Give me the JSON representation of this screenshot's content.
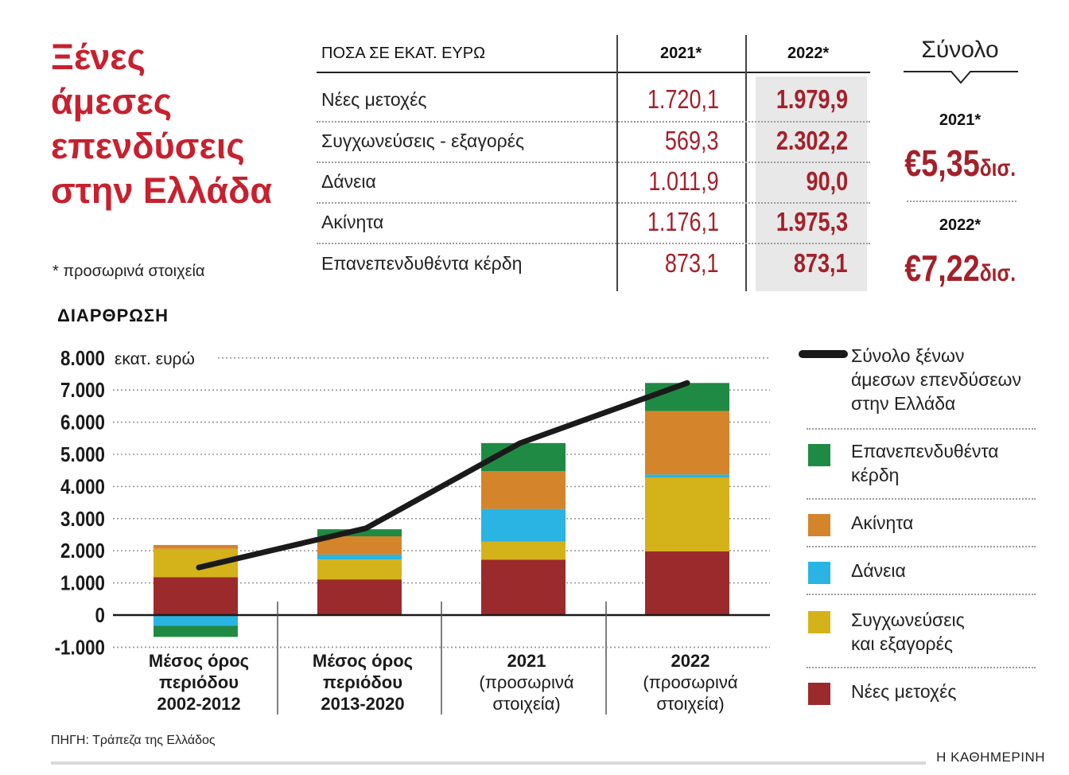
{
  "title": [
    "Ξένες",
    "άμεσες",
    "επενδύσεις",
    "στην Ελλάδα"
  ],
  "footnote": "* προσωρινά στοιχεία",
  "table": {
    "header_label": "ΠΟΣΑ ΣΕ ΕΚΑΤ. ΕΥΡΩ",
    "years": [
      "2021*",
      "2022*"
    ],
    "rows": [
      {
        "label": "Νέες μετοχές",
        "v2021": "1.720,1",
        "v2022": "1.979,9"
      },
      {
        "label": "Συγχωνεύσεις - εξαγορές",
        "v2021": "569,3",
        "v2022": "2.302,2"
      },
      {
        "label": "Δάνεια",
        "v2021": "1.011,9",
        "v2022": "90,0"
      },
      {
        "label": "Ακίνητα",
        "v2021": "1.176,1",
        "v2022": "1.975,3"
      },
      {
        "label": "Επανεπενδυθέντα κέρδη",
        "v2021": "873,1",
        "v2022": "873,1"
      }
    ]
  },
  "totals": {
    "title": "Σύνολο",
    "items": [
      {
        "year": "2021*",
        "value": "€5,35",
        "unit": "δισ."
      },
      {
        "year": "2022*",
        "value": "€7,22",
        "unit": "δισ."
      }
    ]
  },
  "section_title": "ΔΙΑΡΘΡΩΣΗ",
  "source": "ΠΗΓΗ: Τράπεζα της Ελλάδος",
  "brand": "Η ΚΑΘΗΜΕΡΙΝΗ",
  "colors": {
    "Νέες μετοχές": "#9b2a2c",
    "Συγχωνεύσεις και εξαγορές": "#d4b21a",
    "Δάνεια": "#29b4e3",
    "Ακίνητα": "#d4842a",
    "Επανεπενδυθέντα κέρδη": "#1f8a43",
    "line": "#1a1a1a",
    "accent": "#c8202e"
  },
  "chart_data": {
    "type": "bar",
    "stacked": true,
    "ylabel": "εκατ. ευρώ",
    "ylim": [
      -1000,
      8000
    ],
    "yticks": [
      "8.000",
      "7.000",
      "6.000",
      "5.000",
      "4.000",
      "3.000",
      "2.000",
      "1.000",
      "0",
      "-1.000"
    ],
    "ytick_values": [
      8000,
      7000,
      6000,
      5000,
      4000,
      3000,
      2000,
      1000,
      0,
      -1000
    ],
    "categories": [
      [
        "Μέσος όρος",
        "περιόδου",
        "2002-2012"
      ],
      [
        "Μέσος όρος",
        "περιόδου",
        "2013-2020"
      ],
      [
        "2021",
        "(προσωρινά",
        "στοιχεία)"
      ],
      [
        "2022",
        "(προσωρινά",
        "στοιχεία)"
      ]
    ],
    "series": [
      {
        "name": "Νέες μετοχές",
        "values": [
          1180,
          1110,
          1720.1,
          1979.9
        ]
      },
      {
        "name": "Συγχωνεύσεις και εξαγορές",
        "values": [
          880,
          620,
          569.3,
          2302.2
        ]
      },
      {
        "name": "Δάνεια",
        "values": [
          -330,
          150,
          1011.9,
          90.0
        ]
      },
      {
        "name": "Ακίνητα",
        "values": [
          120,
          570,
          1176.1,
          1975.3
        ]
      },
      {
        "name": "Επανεπενδυθέντα κέρδη",
        "values": [
          -350,
          220,
          873.1,
          873.1
        ]
      }
    ],
    "line": {
      "name": "Σύνολο ξένων άμεσων επενδύσεων στην Ελλάδα",
      "values": [
        1480,
        2700,
        5350,
        7220
      ]
    },
    "legend": [
      {
        "label": "Σύνολο ξένων\nάμεσων επενδύσεων\nστην Ελλάδα",
        "kind": "line"
      },
      {
        "label": "Επανεπενδυθέντα\nκέρδη",
        "kind": "Επανεπενδυθέντα κέρδη"
      },
      {
        "label": "Ακίνητα",
        "kind": "Ακίνητα"
      },
      {
        "label": "Δάνεια",
        "kind": "Δάνεια"
      },
      {
        "label": "Συγχωνεύσεις\nκαι εξαγορές",
        "kind": "Συγχωνεύσεις και εξαγορές"
      },
      {
        "label": "Νέες μετοχές",
        "kind": "Νέες μετοχές"
      }
    ]
  }
}
